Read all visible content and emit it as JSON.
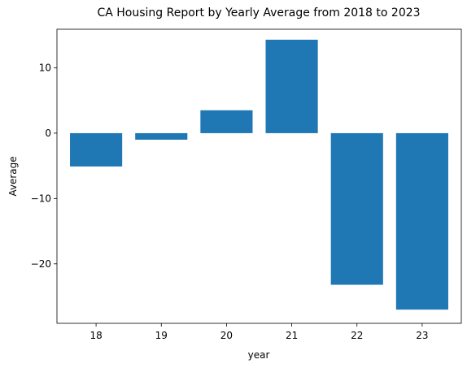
{
  "chart_data": {
    "type": "bar",
    "title": "CA Housing Report by Yearly Average from 2018 to 2023",
    "xlabel": "year",
    "ylabel": "Average",
    "categories": [
      "18",
      "19",
      "20",
      "21",
      "22",
      "23"
    ],
    "values": [
      -5.1,
      -1.0,
      3.5,
      14.3,
      -23.2,
      -27.0
    ],
    "ylim": [
      -29.1,
      15.9
    ],
    "yticks": [
      10,
      0,
      -10,
      -20
    ],
    "ytick_labels": [
      "10",
      "0",
      "−10",
      "−20"
    ],
    "bar_color": "#1f77b4",
    "grid": false,
    "legend": "none"
  }
}
